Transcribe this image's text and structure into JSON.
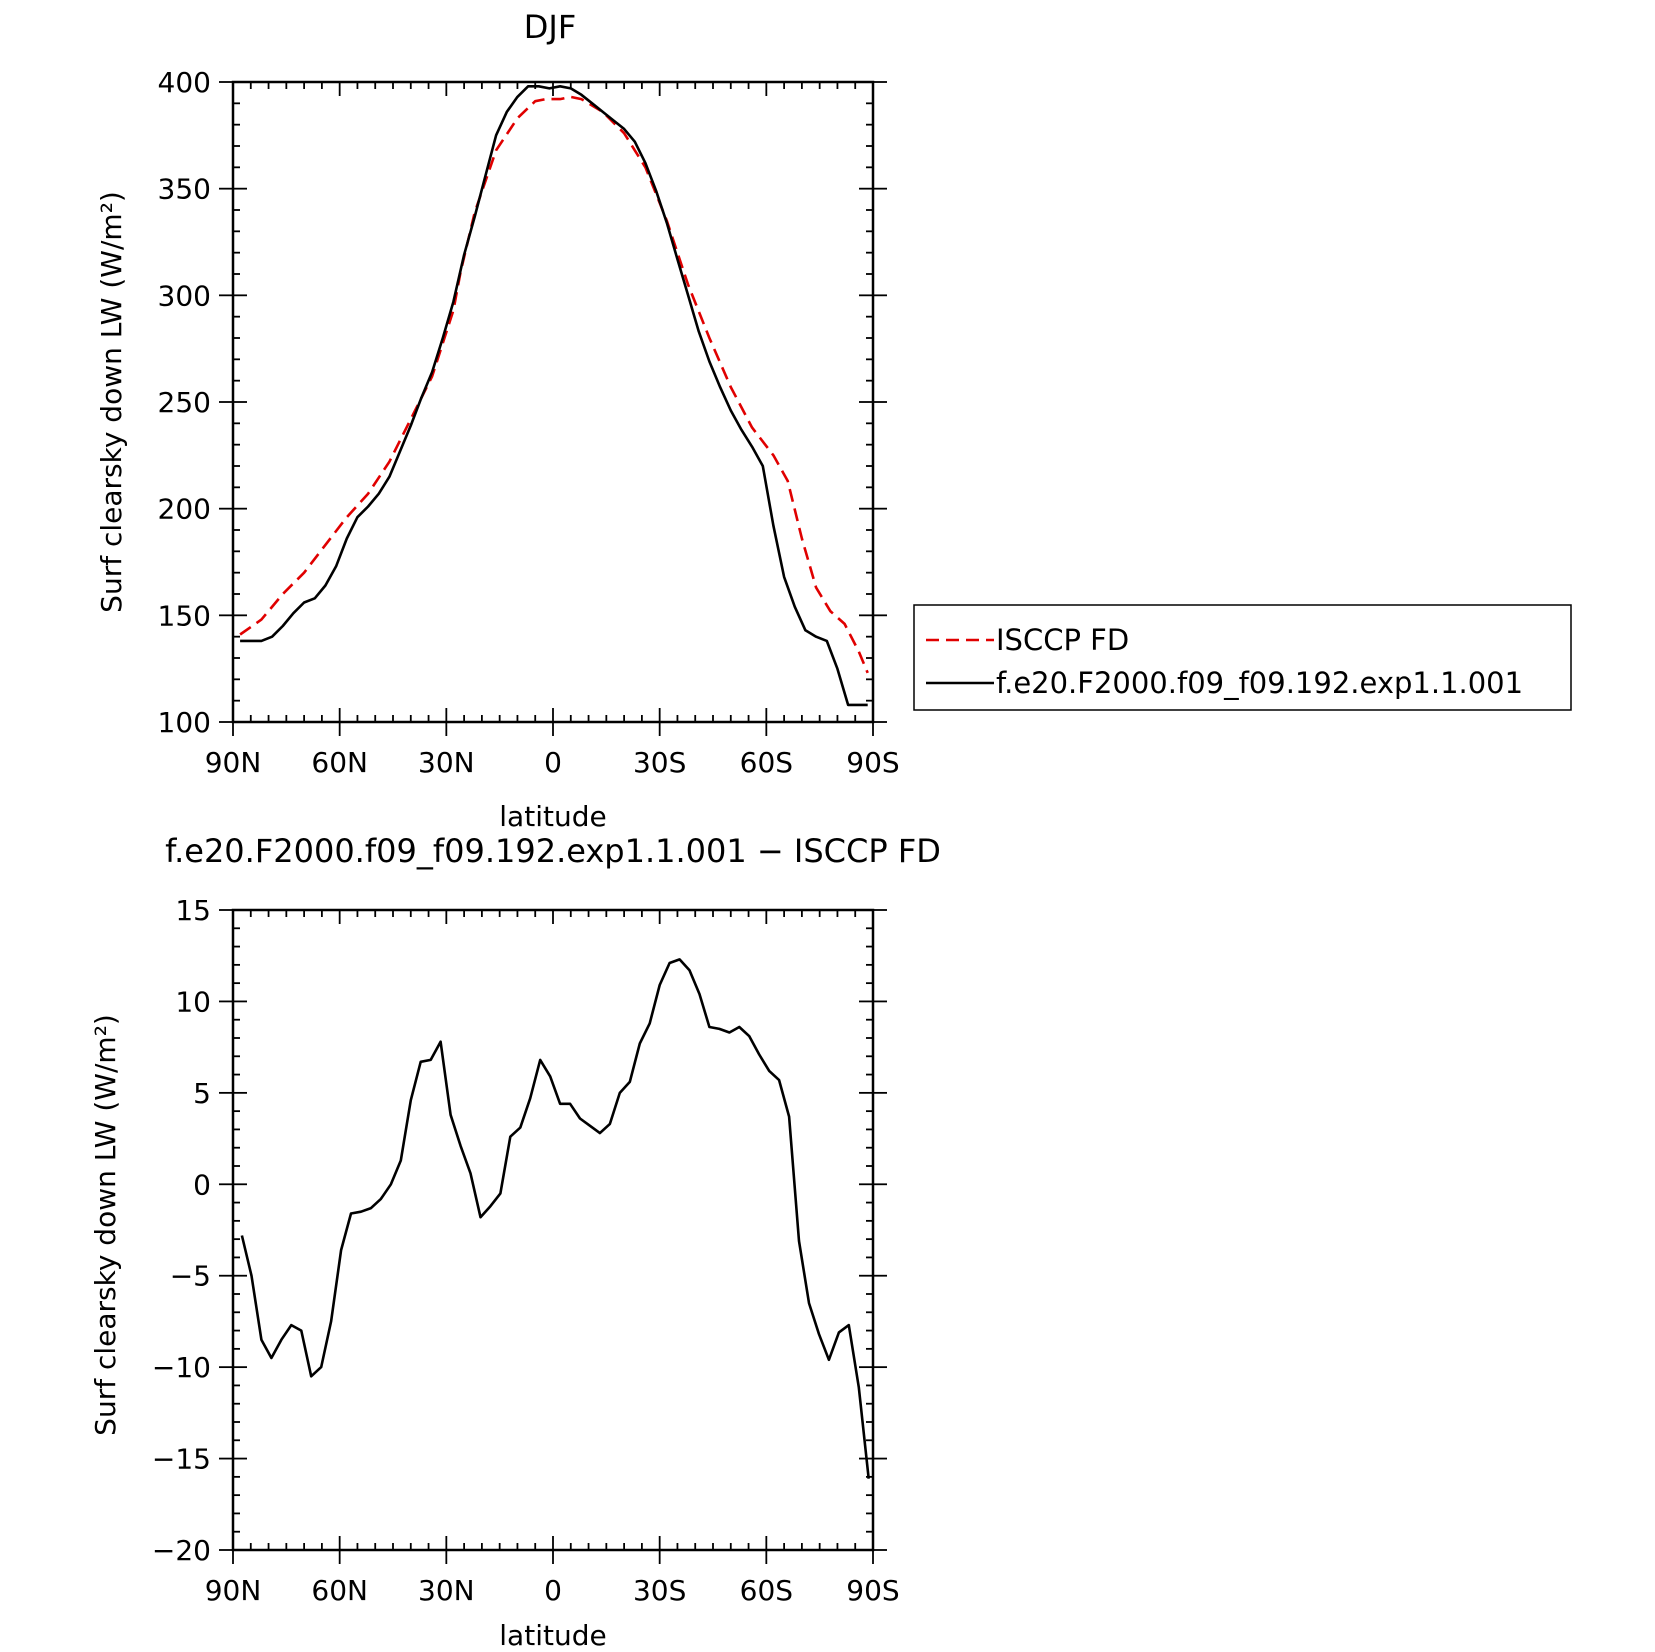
{
  "chart_data": [
    {
      "type": "line",
      "title": "DJF",
      "xlabel": "latitude",
      "ylabel": "Surf clearsky down LW (W/m²)",
      "xlim": [
        -90,
        90
      ],
      "ylim": [
        100,
        400
      ],
      "xticks": [
        {
          "value": -90,
          "label": "90N"
        },
        {
          "value": -60,
          "label": "60N"
        },
        {
          "value": -30,
          "label": "30N"
        },
        {
          "value": 0,
          "label": "0"
        },
        {
          "value": 30,
          "label": "30S"
        },
        {
          "value": 60,
          "label": "60S"
        },
        {
          "value": 90,
          "label": "90S"
        }
      ],
      "yticks": [
        100,
        150,
        200,
        250,
        300,
        350,
        400
      ],
      "legend": "right",
      "grid": false,
      "series": [
        {
          "name": "ISCCP FD",
          "color": "#e00000",
          "dash": "dashed",
          "x": [
            -88,
            -82,
            -76,
            -70,
            -64,
            -58,
            -52,
            -46,
            -40,
            -34,
            -28,
            -26,
            -22,
            -16,
            -10,
            -5,
            -2,
            2,
            5,
            8,
            14,
            20,
            26,
            32,
            38,
            44,
            50,
            56,
            62,
            66,
            70,
            74,
            78,
            82,
            86,
            88.5
          ],
          "y": [
            141,
            148,
            160,
            170,
            183,
            196,
            207,
            222,
            242,
            262,
            293,
            311,
            339,
            368,
            383,
            391,
            392,
            392,
            393,
            392,
            386,
            376,
            360,
            335,
            305,
            280,
            257,
            238,
            225,
            213,
            186,
            163,
            152,
            146,
            133,
            123
          ]
        },
        {
          "name": "f.e20.F2000.f09_f09.192.exp1.1.001",
          "color": "#000000",
          "dash": "solid",
          "x": [
            -88,
            -82,
            -79,
            -76,
            -73,
            -70,
            -67,
            -64,
            -61,
            -58,
            -55,
            -52,
            -49,
            -46,
            -43,
            -40,
            -37,
            -34,
            -31,
            -28,
            -25,
            -22,
            -19,
            -16,
            -13,
            -10,
            -7,
            -4,
            -1,
            2,
            5,
            8,
            11,
            14,
            17,
            20,
            23,
            26,
            29,
            32,
            35,
            38,
            41,
            44,
            47,
            50,
            53,
            56,
            59,
            62,
            65,
            68,
            71,
            74,
            77,
            80,
            83,
            86,
            88.5
          ],
          "y": [
            138,
            138,
            140,
            145,
            151,
            156,
            158,
            164,
            173,
            186,
            196,
            201,
            207,
            215,
            227,
            239,
            252,
            264,
            280,
            297,
            319,
            337,
            356,
            375,
            386,
            393,
            398,
            398,
            397,
            398,
            397,
            394,
            390,
            386,
            382,
            378,
            372,
            362,
            349,
            334,
            317,
            300,
            283,
            269,
            257,
            246,
            237,
            229,
            220,
            192,
            168,
            154,
            143,
            140,
            138,
            125,
            108,
            108,
            108
          ]
        }
      ]
    },
    {
      "type": "line",
      "title": "f.e20.F2000.f09_f09.192.exp1.1.001 − ISCCP FD",
      "xlabel": "latitude",
      "ylabel": "Surf clearsky down LW (W/m²)",
      "xlim": [
        -90,
        90
      ],
      "ylim": [
        -20,
        15
      ],
      "xticks": [
        {
          "value": -90,
          "label": "90N"
        },
        {
          "value": -60,
          "label": "60N"
        },
        {
          "value": -30,
          "label": "30N"
        },
        {
          "value": 0,
          "label": "0"
        },
        {
          "value": 30,
          "label": "30S"
        },
        {
          "value": 60,
          "label": "60S"
        },
        {
          "value": 90,
          "label": "90S"
        }
      ],
      "yticks": [
        -20,
        -15,
        -10,
        -5,
        0,
        5,
        10,
        15
      ],
      "grid": false,
      "series": [
        {
          "color": "#000000",
          "dash": "solid",
          "x": [
            -87.5,
            -84.8,
            -82,
            -79.2,
            -76.4,
            -73.6,
            -70.8,
            -68,
            -65.2,
            -62.4,
            -59.6,
            -56.8,
            -54,
            -51.2,
            -48.4,
            -45.6,
            -42.8,
            -40,
            -37.2,
            -34.4,
            -31.6,
            -28.8,
            -26,
            -23.2,
            -20.4,
            -17.6,
            -14.8,
            -12,
            -9.2,
            -6.4,
            -3.6,
            -0.8,
            2,
            4.8,
            7.6,
            10.4,
            13.2,
            16,
            18.8,
            21.6,
            24.4,
            27.2,
            30,
            32.8,
            35.6,
            38.4,
            41.2,
            44,
            46.8,
            49.6,
            52.4,
            55.2,
            58,
            60.8,
            63.6,
            66.4,
            69.2,
            72,
            74.8,
            77.6,
            80.4,
            83.2,
            86,
            88.8
          ],
          "y": [
            -2.8,
            -5,
            -8.5,
            -9.5,
            -8.5,
            -7.7,
            -8,
            -10.5,
            -10,
            -7.5,
            -3.6,
            -1.6,
            -1.5,
            -1.3,
            -0.8,
            0,
            1.3,
            4.6,
            6.7,
            6.8,
            7.8,
            3.8,
            2.1,
            0.6,
            -1.8,
            -1.2,
            -0.5,
            2.6,
            3.1,
            4.7,
            6.8,
            5.9,
            4.4,
            4.4,
            3.6,
            3.2,
            2.8,
            3.3,
            5,
            5.6,
            7.7,
            8.8,
            10.9,
            12.1,
            12.3,
            11.7,
            10.4,
            8.6,
            8.5,
            8.3,
            8.6,
            8.1,
            7.1,
            6.2,
            5.7,
            3.7,
            -3.1,
            -6.5,
            -8.2,
            -9.6,
            -8.1,
            -7.7,
            -11.1,
            -16.1
          ]
        }
      ]
    }
  ]
}
